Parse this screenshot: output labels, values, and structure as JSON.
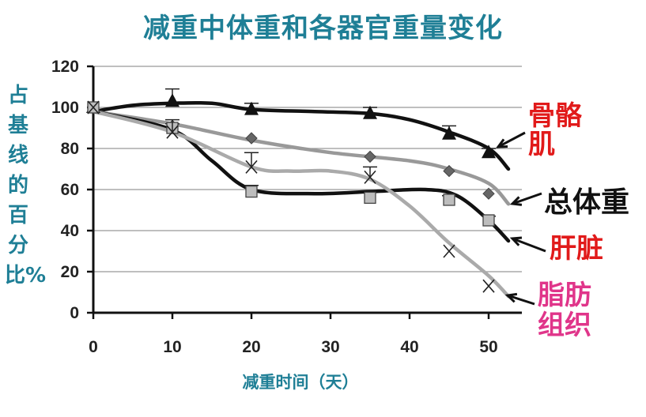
{
  "chart_data": {
    "type": "line",
    "title": "减重中体重和各器官重量变化",
    "xlabel": "减重时间（天）",
    "ylabel": "占基线的百分比%",
    "xlim": [
      0,
      54
    ],
    "ylim": [
      0,
      120
    ],
    "x_ticks": [
      "0",
      "10",
      "20",
      "30",
      "40",
      "50"
    ],
    "y_ticks": [
      "0",
      "20",
      "40",
      "60",
      "80",
      "100",
      "120"
    ],
    "grid": "horizontal",
    "series": [
      {
        "name": "骨骼肌",
        "color": "#111111",
        "marker": "triangle",
        "x": [
          0,
          10,
          20,
          35,
          45,
          50
        ],
        "values": [
          100,
          103,
          99,
          97,
          87,
          78
        ],
        "error": [
          0,
          6,
          3,
          3,
          4,
          2
        ],
        "curve": [
          [
            0,
            98
          ],
          [
            5,
            101
          ],
          [
            10,
            102
          ],
          [
            15,
            102
          ],
          [
            20,
            99
          ],
          [
            28,
            98
          ],
          [
            35,
            97
          ],
          [
            40,
            94
          ],
          [
            45,
            88
          ],
          [
            50,
            80
          ],
          [
            52.5,
            70
          ]
        ]
      },
      {
        "name": "总体重",
        "color": "#999999",
        "marker": "diamond",
        "x": [
          0,
          10,
          20,
          35,
          45,
          50
        ],
        "values": [
          100,
          91,
          85,
          76,
          69,
          58
        ],
        "error": [
          0,
          0,
          0,
          0,
          0,
          0
        ],
        "curve": [
          [
            0,
            98
          ],
          [
            10,
            92
          ],
          [
            20,
            84
          ],
          [
            30,
            78
          ],
          [
            40,
            74
          ],
          [
            45,
            70
          ],
          [
            50,
            63
          ],
          [
            52.5,
            53
          ]
        ]
      },
      {
        "name": "肝脏",
        "color": "#111111",
        "marker": "square",
        "x": [
          0,
          10,
          20,
          35,
          45,
          50
        ],
        "values": [
          100,
          90,
          59,
          56,
          55,
          45
        ],
        "error": [
          0,
          2,
          3,
          0,
          2,
          2
        ],
        "curve": [
          [
            0,
            98
          ],
          [
            10,
            89
          ],
          [
            15,
            74
          ],
          [
            20,
            60
          ],
          [
            28,
            58
          ],
          [
            35,
            59
          ],
          [
            42,
            60
          ],
          [
            46,
            57
          ],
          [
            50,
            45
          ],
          [
            52.5,
            35
          ]
        ]
      },
      {
        "name": "脂肪组织",
        "color": "#aaaaaa",
        "marker": "x",
        "x": [
          0,
          10,
          20,
          35,
          45,
          50
        ],
        "values": [
          100,
          88,
          71,
          66,
          30,
          13
        ],
        "error": [
          0,
          6,
          7,
          5,
          0,
          0
        ],
        "curve": [
          [
            0,
            98
          ],
          [
            10,
            88
          ],
          [
            20,
            71
          ],
          [
            25,
            69
          ],
          [
            30,
            69
          ],
          [
            35,
            65
          ],
          [
            40,
            52
          ],
          [
            45,
            34
          ],
          [
            50,
            18
          ],
          [
            52.5,
            8
          ]
        ]
      }
    ],
    "series_labels": [
      {
        "text_lines": [
          "骨骼",
          "肌"
        ],
        "color": "#e11a1a"
      },
      {
        "text_lines": [
          "总体重"
        ],
        "color": "#111111"
      },
      {
        "text_lines": [
          "肝脏"
        ],
        "color": "#e11a1a"
      },
      {
        "text_lines": [
          "脂肪",
          "组织"
        ],
        "color": "#e0358a"
      }
    ],
    "colors": {
      "title": "#1f7f96",
      "grid": "#999999",
      "axis": "#111111"
    }
  }
}
